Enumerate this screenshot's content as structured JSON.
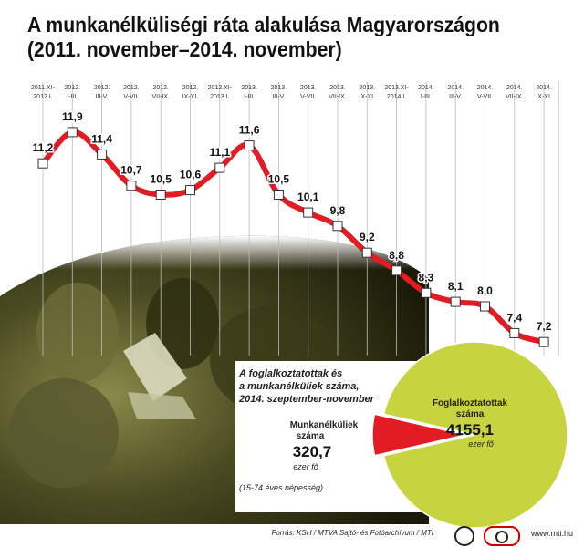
{
  "title": {
    "line1": "A munkanélküliségi ráta alakulása Magyarországon",
    "line2": "(2011. november–2014. november)"
  },
  "chart_data": [
    {
      "type": "line",
      "periods": [
        [
          "2011.XI-",
          "2012.I."
        ],
        [
          "2012.",
          "I-III."
        ],
        [
          "2012.",
          "III-V."
        ],
        [
          "2012.",
          "V-VII."
        ],
        [
          "2012.",
          "VII-IX."
        ],
        [
          "2012.",
          "IX-XI."
        ],
        [
          "2012.XI-",
          "2013.I."
        ],
        [
          "2013.",
          "I-III."
        ],
        [
          "2013.",
          "III-V."
        ],
        [
          "2013.",
          "V-VII."
        ],
        [
          "2013.",
          "VII-IX."
        ],
        [
          "2013.",
          "IX-XI."
        ],
        [
          "2013.XI-",
          "2014.I."
        ],
        [
          "2014.",
          "I-III."
        ],
        [
          "2014.",
          "III-V."
        ],
        [
          "2014.",
          "V-VII."
        ],
        [
          "2014.",
          "VII-IX."
        ],
        [
          "2014.",
          "IX-XI."
        ]
      ],
      "values": [
        11.2,
        11.9,
        11.4,
        10.7,
        10.5,
        10.6,
        11.1,
        11.6,
        10.5,
        10.1,
        9.8,
        9.2,
        8.8,
        8.3,
        8.1,
        8.0,
        7.4,
        7.2
      ],
      "value_labels": [
        "11,2",
        "11,9",
        "11,4",
        "10,7",
        "10,5",
        "10,6",
        "11,1",
        "11,6",
        "10,5",
        "10,1",
        "9,8",
        "9,2",
        "8,8",
        "8,3",
        "8,1",
        "8,0",
        "7,4",
        "7,2"
      ],
      "ylim": [
        7.0,
        12.0
      ],
      "grid": true,
      "line_color": "#e31b23"
    },
    {
      "type": "pie",
      "title_lines": [
        "A foglalkoztatottak és",
        "a munkanélküliek száma,",
        "2014. szeptember-november"
      ],
      "slices": [
        {
          "name_lines": [
            "Foglalkoztatottak",
            "száma"
          ],
          "value": 4155.1,
          "value_label": "4155,1",
          "unit": "ezer fő",
          "color": "#c8d340"
        },
        {
          "name_lines": [
            "Munkanélküliek",
            "száma"
          ],
          "value": 320.7,
          "value_label": "320,7",
          "unit": "ezer fő",
          "color": "#e31b23"
        }
      ],
      "note": "(15-74 éves népesség)"
    }
  ],
  "footer": {
    "source": "Forrás: KSH / MTVA Sajtó- és Fotóarchívum / MTI",
    "site": "www.mti.hu"
  }
}
